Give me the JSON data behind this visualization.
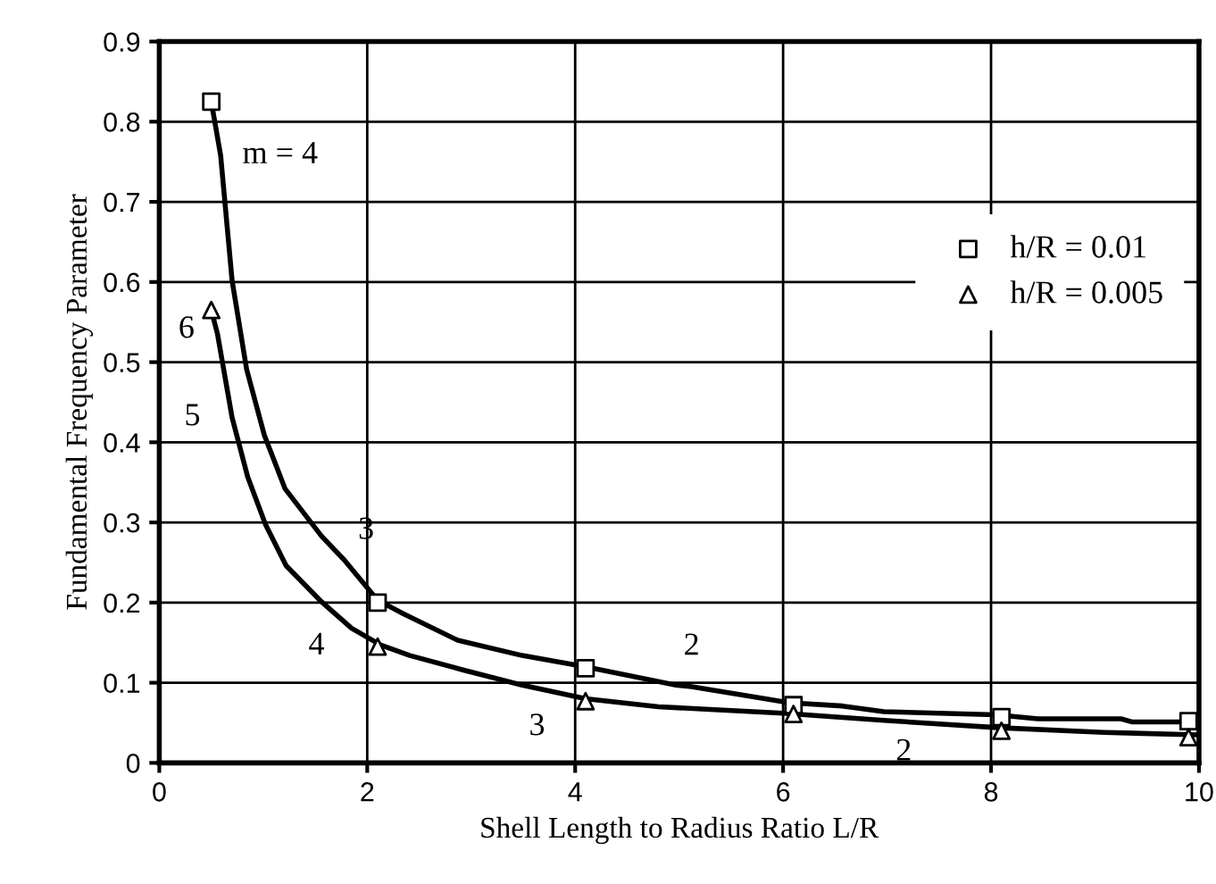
{
  "chart_data": {
    "type": "line",
    "xlabel": "Shell Length to Radius Ratio L/R",
    "ylabel": "Fundamental Frequency Parameter",
    "xlim": [
      0,
      10
    ],
    "ylim": [
      0,
      0.9
    ],
    "xticks": [
      0,
      2,
      4,
      6,
      8,
      10
    ],
    "yticks": [
      0,
      0.1,
      0.2,
      0.3,
      0.4,
      0.5,
      0.6,
      0.7,
      0.8,
      0.9
    ],
    "grid": true,
    "legend": "right",
    "series": [
      {
        "color": "#000000",
        "marker": "none",
        "line_style": "solid",
        "x": [
          0.5,
          0.59,
          0.7,
          0.84,
          1.01,
          1.21,
          1.56,
          1.78,
          2.1,
          2.35,
          2.87,
          3.49,
          4.1,
          4.97,
          5.12,
          6.06,
          6.57,
          6.97,
          8.05,
          8.45,
          9.25,
          9.36,
          10
        ],
        "values": [
          0.825,
          0.758,
          0.602,
          0.491,
          0.409,
          0.342,
          0.283,
          0.253,
          0.203,
          0.186,
          0.153,
          0.134,
          0.12,
          0.097,
          0.095,
          0.075,
          0.071,
          0.064,
          0.06,
          0.055,
          0.055,
          0.051,
          0.051
        ]
      },
      {
        "color": "#000000",
        "marker": "none",
        "line_style": "solid",
        "x": [
          0.5,
          0.56,
          0.7,
          0.85,
          1.02,
          1.22,
          1.56,
          1.85,
          2.13,
          2.41,
          2.92,
          3.49,
          4.1,
          4.8,
          6.0,
          6.97,
          8.06,
          9.09,
          10
        ],
        "values": [
          0.565,
          0.535,
          0.431,
          0.357,
          0.298,
          0.246,
          0.201,
          0.168,
          0.147,
          0.134,
          0.116,
          0.097,
          0.08,
          0.07,
          0.062,
          0.053,
          0.044,
          0.038,
          0.035
        ]
      },
      {
        "type": "scatter",
        "name": "h/R = 0.01",
        "color": "#000000",
        "marker": "square",
        "x": [
          0.5,
          2.1,
          4.1,
          6.1,
          8.1,
          9.9
        ],
        "values": [
          0.825,
          0.2,
          0.118,
          0.072,
          0.057,
          0.052
        ]
      },
      {
        "type": "scatter",
        "name": "h/R = 0.005",
        "color": "#000000",
        "marker": "triangle",
        "x": [
          0.5,
          2.1,
          4.1,
          6.1,
          8.1,
          9.9
        ],
        "values": [
          0.565,
          0.145,
          0.077,
          0.061,
          0.04,
          0.032
        ]
      }
    ],
    "annotations": [
      {
        "text": "m = 4",
        "x": 0.59,
        "y": 0.758
      },
      {
        "text": "6",
        "x": 0.5,
        "y": 0.565
      },
      {
        "text": "5",
        "x": 0.7,
        "y": 0.431
      },
      {
        "text": "3",
        "x": 1.56,
        "y": 0.283
      },
      {
        "text": "4",
        "x": 1.56,
        "y": 0.201
      },
      {
        "text": "3",
        "x": 3.49,
        "y": 0.097
      },
      {
        "text": "2",
        "x": 5.12,
        "y": 0.095
      },
      {
        "text": "2",
        "x": 6.97,
        "y": 0.053
      }
    ]
  }
}
